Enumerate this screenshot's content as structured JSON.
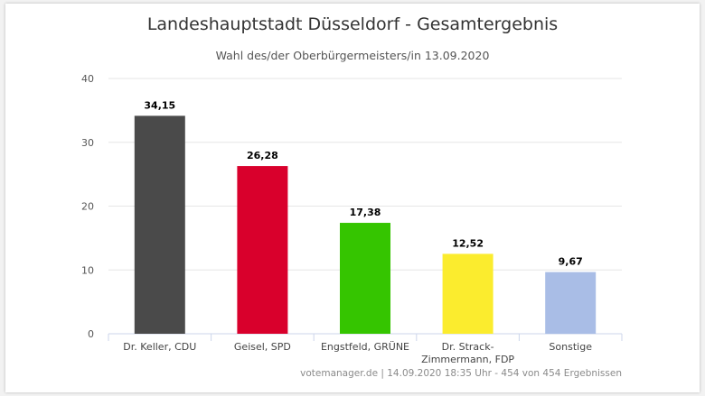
{
  "chart_data": {
    "type": "bar",
    "title": "Landeshauptstadt Düsseldorf - Gesamtergebnis",
    "subtitle": "Wahl des/der Oberbürgermeisters/in 13.09.2020",
    "categories": [
      [
        "Dr. Keller, CDU"
      ],
      [
        "Geisel, SPD"
      ],
      [
        "Engstfeld, GRÜNE"
      ],
      [
        "Dr. Strack-",
        "Zimmermann, FDP"
      ],
      [
        "Sonstige"
      ]
    ],
    "values": [
      34.15,
      26.28,
      17.38,
      12.52,
      9.67
    ],
    "value_labels": [
      "34,15",
      "26,28",
      "17,38",
      "12,52",
      "9,67"
    ],
    "colors": [
      "#4a4a4a",
      "#d9002c",
      "#35c500",
      "#fbec2e",
      "#a9bde6"
    ],
    "ylim": [
      0,
      40
    ],
    "yticks": [
      0,
      10,
      20,
      30,
      40
    ],
    "grid": true,
    "credit": "votemanager.de | 14.09.2020 18:35 Uhr - 454 von 454 Ergebnissen"
  }
}
